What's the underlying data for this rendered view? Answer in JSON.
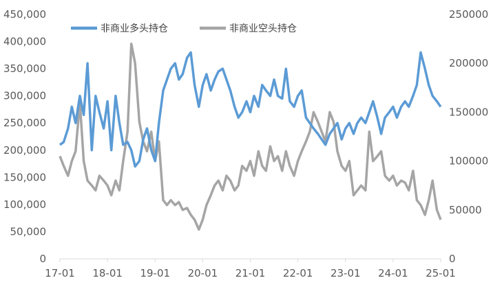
{
  "chart_data": {
    "type": "line",
    "title": "",
    "x_ticks": [
      "17-01",
      "18-01",
      "19-01",
      "20-01",
      "21-01",
      "22-01",
      "23-01",
      "24-01",
      "25-01"
    ],
    "y_left_ticks": [
      "0",
      "50,000",
      "100,000",
      "150,000",
      "200,000",
      "250,000",
      "300,000",
      "350,000",
      "400,000",
      "450,000"
    ],
    "y_right_ticks": [
      "0",
      "50000",
      "100000",
      "150000",
      "200000",
      "250000"
    ],
    "ylim_left": [
      0,
      450000
    ],
    "ylim_right": [
      0,
      250000
    ],
    "grid": false,
    "legend_position": "top-left",
    "series": [
      {
        "name": "非商业多头持仓",
        "color": "#5B9BD5",
        "axis": "left",
        "x": [
          2017.0,
          2017.08,
          2017.17,
          2017.25,
          2017.33,
          2017.42,
          2017.5,
          2017.58,
          2017.67,
          2017.75,
          2017.83,
          2017.92,
          2018.0,
          2018.08,
          2018.17,
          2018.25,
          2018.33,
          2018.42,
          2018.5,
          2018.58,
          2018.67,
          2018.75,
          2018.83,
          2018.92,
          2019.0,
          2019.08,
          2019.17,
          2019.25,
          2019.33,
          2019.42,
          2019.5,
          2019.58,
          2019.67,
          2019.75,
          2019.83,
          2019.92,
          2020.0,
          2020.08,
          2020.17,
          2020.25,
          2020.33,
          2020.42,
          2020.5,
          2020.58,
          2020.67,
          2020.75,
          2020.83,
          2020.92,
          2021.0,
          2021.08,
          2021.17,
          2021.25,
          2021.33,
          2021.42,
          2021.5,
          2021.58,
          2021.67,
          2021.75,
          2021.83,
          2021.92,
          2022.0,
          2022.08,
          2022.17,
          2022.25,
          2022.33,
          2022.42,
          2022.5,
          2022.58,
          2022.67,
          2022.75,
          2022.83,
          2022.92,
          2023.0,
          2023.08,
          2023.17,
          2023.25,
          2023.33,
          2023.42,
          2023.5,
          2023.58,
          2023.67,
          2023.75,
          2023.83,
          2023.92,
          2024.0,
          2024.08,
          2024.17,
          2024.25,
          2024.33,
          2024.42,
          2024.5,
          2024.58,
          2024.67,
          2024.75,
          2024.83,
          2024.92,
          2025.0
        ],
        "values": [
          210000,
          215000,
          240000,
          280000,
          250000,
          300000,
          265000,
          360000,
          200000,
          300000,
          270000,
          240000,
          290000,
          200000,
          300000,
          250000,
          210000,
          215000,
          200000,
          170000,
          180000,
          220000,
          240000,
          200000,
          180000,
          250000,
          310000,
          330000,
          350000,
          360000,
          330000,
          340000,
          370000,
          380000,
          320000,
          280000,
          320000,
          340000,
          310000,
          330000,
          345000,
          350000,
          330000,
          310000,
          280000,
          260000,
          270000,
          290000,
          270000,
          300000,
          280000,
          320000,
          310000,
          300000,
          330000,
          300000,
          295000,
          350000,
          290000,
          280000,
          300000,
          310000,
          260000,
          250000,
          240000,
          230000,
          220000,
          210000,
          230000,
          240000,
          250000,
          220000,
          240000,
          250000,
          230000,
          250000,
          260000,
          250000,
          270000,
          290000,
          260000,
          230000,
          260000,
          270000,
          280000,
          260000,
          280000,
          290000,
          280000,
          300000,
          320000,
          380000,
          350000,
          320000,
          300000,
          290000,
          280000
        ]
      },
      {
        "name": "非商业空头持仓",
        "color": "#A5A5A5",
        "axis": "right",
        "x": [
          2017.0,
          2017.08,
          2017.17,
          2017.25,
          2017.33,
          2017.42,
          2017.5,
          2017.58,
          2017.67,
          2017.75,
          2017.83,
          2017.92,
          2018.0,
          2018.08,
          2018.17,
          2018.25,
          2018.33,
          2018.42,
          2018.5,
          2018.58,
          2018.67,
          2018.75,
          2018.83,
          2018.92,
          2019.0,
          2019.08,
          2019.17,
          2019.25,
          2019.33,
          2019.42,
          2019.5,
          2019.58,
          2019.67,
          2019.75,
          2019.83,
          2019.92,
          2020.0,
          2020.08,
          2020.17,
          2020.25,
          2020.33,
          2020.42,
          2020.5,
          2020.58,
          2020.67,
          2020.75,
          2020.83,
          2020.92,
          2021.0,
          2021.08,
          2021.17,
          2021.25,
          2021.33,
          2021.42,
          2021.5,
          2021.58,
          2021.67,
          2021.75,
          2021.83,
          2021.92,
          2022.0,
          2022.08,
          2022.17,
          2022.25,
          2022.33,
          2022.42,
          2022.5,
          2022.58,
          2022.67,
          2022.75,
          2022.83,
          2022.92,
          2023.0,
          2023.08,
          2023.17,
          2023.25,
          2023.33,
          2023.42,
          2023.5,
          2023.58,
          2023.67,
          2023.75,
          2023.83,
          2023.92,
          2024.0,
          2024.08,
          2024.17,
          2024.25,
          2024.33,
          2024.42,
          2024.5,
          2024.58,
          2024.67,
          2024.75,
          2024.83,
          2024.92,
          2025.0
        ],
        "values": [
          105000,
          95000,
          85000,
          100000,
          110000,
          160000,
          100000,
          80000,
          75000,
          70000,
          85000,
          80000,
          75000,
          65000,
          80000,
          70000,
          100000,
          130000,
          220000,
          200000,
          140000,
          120000,
          110000,
          130000,
          100000,
          120000,
          60000,
          55000,
          60000,
          55000,
          58000,
          50000,
          52000,
          45000,
          40000,
          30000,
          40000,
          55000,
          65000,
          75000,
          80000,
          70000,
          85000,
          80000,
          70000,
          75000,
          95000,
          90000,
          100000,
          85000,
          110000,
          95000,
          90000,
          115000,
          100000,
          105000,
          90000,
          110000,
          95000,
          85000,
          100000,
          110000,
          120000,
          130000,
          150000,
          140000,
          130000,
          120000,
          150000,
          140000,
          110000,
          95000,
          90000,
          100000,
          65000,
          70000,
          75000,
          70000,
          130000,
          100000,
          105000,
          110000,
          85000,
          80000,
          85000,
          75000,
          80000,
          78000,
          70000,
          90000,
          60000,
          55000,
          45000,
          60000,
          80000,
          50000,
          40000
        ]
      }
    ]
  }
}
